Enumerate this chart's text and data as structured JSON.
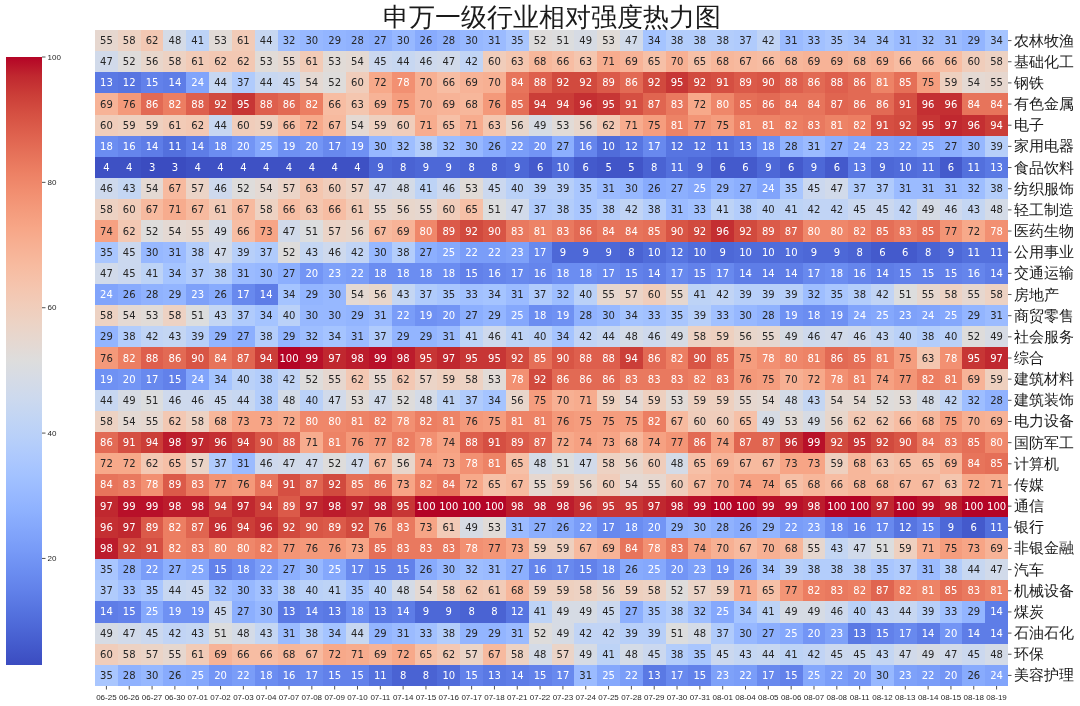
{
  "chart_data": {
    "type": "heatmap",
    "title": "申万一级行业相对强度热力图",
    "categories": [
      "06-25",
      "06-26",
      "06-27",
      "06-30",
      "07-01",
      "07-02",
      "07-03",
      "07-04",
      "07-07",
      "07-08",
      "07-09",
      "07-10",
      "07-11",
      "07-14",
      "07-15",
      "07-16",
      "07-17",
      "07-18",
      "07-21",
      "07-22",
      "07-23",
      "07-24",
      "07-25",
      "07-28",
      "07-29",
      "07-30",
      "07-31",
      "08-01",
      "08-04",
      "08-05",
      "08-06",
      "08-07",
      "08-08",
      "08-11",
      "08-12",
      "08-13",
      "08-14",
      "08-15",
      "08-18",
      "08-19"
    ],
    "y_categories": [
      "农林牧渔",
      "基础化工",
      "钢铁",
      "有色金属",
      "电子",
      "家用电器",
      "食品饮料",
      "纺织服饰",
      "轻工制造",
      "医药生物",
      "公用事业",
      "交通运输",
      "房地产",
      "商贸零售",
      "社会服务",
      "综合",
      "建筑材料",
      "建筑装饰",
      "电力设备",
      "国防军工",
      "计算机",
      "传媒",
      "通信",
      "银行",
      "非银金融",
      "汽车",
      "机械设备",
      "煤炭",
      "石油石化",
      "环保",
      "美容护理"
    ],
    "cells": [
      [
        55,
        58,
        62,
        48,
        41,
        53,
        61,
        44,
        32,
        30,
        29,
        28,
        27,
        30,
        26,
        28,
        30,
        31,
        35,
        52,
        51,
        49,
        53,
        47,
        34,
        38,
        38,
        38,
        37,
        42,
        31,
        33,
        35,
        34,
        34,
        31,
        32,
        31,
        29,
        34
      ],
      [
        47,
        52,
        56,
        58,
        61,
        62,
        62,
        53,
        55,
        61,
        53,
        54,
        45,
        44,
        46,
        47,
        42,
        60,
        63,
        68,
        66,
        63,
        71,
        69,
        65,
        70,
        65,
        68,
        67,
        66,
        68,
        69,
        69,
        68,
        69,
        66,
        66,
        66,
        60,
        58
      ],
      [
        13,
        12,
        15,
        14,
        24,
        44,
        37,
        44,
        45,
        54,
        52,
        60,
        72,
        78,
        70,
        66,
        69,
        70,
        84,
        88,
        92,
        92,
        89,
        86,
        92,
        95,
        92,
        91,
        89,
        90,
        88,
        86,
        88,
        86,
        81,
        85,
        75,
        59,
        54,
        55
      ],
      [
        69,
        76,
        86,
        82,
        88,
        92,
        95,
        88,
        86,
        82,
        66,
        63,
        69,
        75,
        70,
        69,
        68,
        76,
        85,
        94,
        94,
        96,
        95,
        91,
        87,
        83,
        72,
        80,
        85,
        86,
        84,
        84,
        87,
        86,
        86,
        91,
        96,
        96,
        84,
        84
      ],
      [
        60,
        59,
        59,
        61,
        62,
        44,
        60,
        59,
        66,
        72,
        67,
        54,
        59,
        60,
        71,
        65,
        71,
        63,
        56,
        49,
        53,
        56,
        62,
        71,
        75,
        81,
        77,
        75,
        81,
        81,
        82,
        83,
        81,
        82,
        91,
        92,
        95,
        97,
        96,
        94
      ],
      [
        18,
        16,
        14,
        11,
        14,
        18,
        20,
        25,
        19,
        20,
        17,
        19,
        30,
        32,
        38,
        32,
        30,
        26,
        22,
        20,
        27,
        16,
        10,
        12,
        17,
        12,
        12,
        11,
        13,
        18,
        28,
        31,
        27,
        24,
        23,
        22,
        25,
        27,
        30,
        39
      ],
      [
        4,
        4,
        3,
        3,
        4,
        4,
        4,
        4,
        4,
        4,
        4,
        4,
        9,
        8,
        9,
        9,
        8,
        8,
        9,
        6,
        10,
        6,
        5,
        5,
        8,
        11,
        9,
        6,
        6,
        9,
        6,
        9,
        6,
        13,
        9,
        10,
        11,
        6,
        11,
        13
      ],
      [
        46,
        43,
        54,
        67,
        57,
        46,
        52,
        54,
        57,
        63,
        60,
        57,
        47,
        48,
        41,
        46,
        53,
        45,
        40,
        39,
        39,
        35,
        31,
        30,
        26,
        27,
        25,
        29,
        27,
        24,
        35,
        45,
        47,
        37,
        37,
        31,
        31,
        31,
        32,
        38
      ],
      [
        58,
        60,
        67,
        71,
        67,
        61,
        67,
        58,
        66,
        63,
        66,
        61,
        55,
        56,
        55,
        60,
        65,
        51,
        47,
        37,
        38,
        35,
        38,
        42,
        38,
        31,
        33,
        41,
        38,
        40,
        41,
        42,
        42,
        45,
        45,
        42,
        49,
        46,
        43,
        48
      ],
      [
        74,
        62,
        52,
        54,
        55,
        49,
        66,
        73,
        47,
        51,
        57,
        56,
        67,
        69,
        80,
        89,
        92,
        90,
        83,
        81,
        83,
        86,
        84,
        84,
        85,
        90,
        92,
        96,
        92,
        89,
        87,
        80,
        80,
        82,
        85,
        83,
        85,
        77,
        72,
        78
      ],
      [
        35,
        45,
        30,
        31,
        38,
        47,
        39,
        37,
        52,
        43,
        46,
        42,
        30,
        38,
        27,
        25,
        22,
        22,
        23,
        17,
        9,
        9,
        9,
        8,
        10,
        12,
        10,
        9,
        10,
        10,
        10,
        9,
        9,
        8,
        6,
        6,
        8,
        9,
        11,
        11
      ],
      [
        47,
        45,
        41,
        34,
        37,
        38,
        31,
        30,
        27,
        20,
        23,
        22,
        18,
        18,
        18,
        18,
        15,
        16,
        17,
        16,
        18,
        18,
        17,
        15,
        14,
        17,
        15,
        17,
        14,
        14,
        14,
        17,
        18,
        16,
        14,
        15,
        15,
        15,
        16,
        14
      ],
      [
        24,
        26,
        28,
        29,
        23,
        26,
        17,
        14,
        34,
        29,
        30,
        54,
        56,
        43,
        37,
        35,
        33,
        34,
        31,
        37,
        32,
        40,
        55,
        57,
        60,
        55,
        41,
        42,
        39,
        39,
        39,
        32,
        35,
        38,
        42,
        51,
        55,
        58,
        55,
        58
      ],
      [
        58,
        54,
        53,
        58,
        51,
        43,
        37,
        34,
        40,
        30,
        30,
        29,
        31,
        22,
        19,
        20,
        27,
        29,
        25,
        18,
        19,
        28,
        30,
        34,
        33,
        35,
        39,
        33,
        30,
        28,
        19,
        18,
        19,
        24,
        25,
        23,
        24,
        25,
        29,
        31
      ],
      [
        29,
        38,
        42,
        43,
        39,
        29,
        27,
        38,
        29,
        32,
        34,
        31,
        37,
        29,
        29,
        31,
        41,
        46,
        41,
        40,
        34,
        42,
        44,
        48,
        46,
        49,
        58,
        59,
        56,
        55,
        49,
        46,
        47,
        46,
        43,
        40,
        38,
        40,
        52,
        49
      ],
      [
        76,
        82,
        88,
        86,
        90,
        84,
        87,
        94,
        100,
        99,
        97,
        98,
        99,
        98,
        95,
        97,
        95,
        95,
        92,
        85,
        90,
        88,
        88,
        94,
        86,
        82,
        90,
        85,
        75,
        78,
        80,
        81,
        86,
        85,
        81,
        75,
        63,
        78,
        95,
        97
      ],
      [
        19,
        20,
        17,
        15,
        24,
        34,
        40,
        38,
        42,
        52,
        55,
        62,
        55,
        62,
        57,
        59,
        58,
        53,
        78,
        92,
        86,
        86,
        86,
        83,
        83,
        83,
        82,
        83,
        76,
        75,
        70,
        72,
        78,
        81,
        74,
        77,
        82,
        81,
        69,
        59
      ],
      [
        44,
        49,
        51,
        46,
        46,
        45,
        44,
        38,
        48,
        40,
        47,
        53,
        47,
        52,
        48,
        41,
        37,
        34,
        56,
        75,
        70,
        71,
        59,
        54,
        59,
        53,
        59,
        59,
        55,
        54,
        48,
        43,
        54,
        54,
        52,
        53,
        48,
        42,
        32,
        28
      ],
      [
        58,
        54,
        55,
        62,
        58,
        68,
        73,
        73,
        72,
        80,
        80,
        81,
        82,
        78,
        82,
        81,
        76,
        75,
        81,
        81,
        76,
        75,
        75,
        75,
        82,
        67,
        60,
        60,
        65,
        49,
        53,
        49,
        56,
        62,
        62,
        66,
        68,
        75,
        70,
        69
      ],
      [
        86,
        91,
        94,
        98,
        97,
        96,
        94,
        90,
        88,
        71,
        81,
        76,
        77,
        82,
        78,
        74,
        88,
        91,
        89,
        87,
        72,
        74,
        73,
        68,
        74,
        77,
        86,
        74,
        87,
        87,
        96,
        99,
        92,
        95,
        92,
        90,
        84,
        83,
        85,
        80
      ],
      [
        72,
        72,
        62,
        65,
        57,
        37,
        31,
        46,
        47,
        47,
        52,
        47,
        67,
        56,
        74,
        73,
        78,
        81,
        65,
        48,
        51,
        47,
        58,
        56,
        60,
        48,
        65,
        69,
        67,
        67,
        73,
        73,
        59,
        68,
        63,
        65,
        65,
        69,
        84,
        85
      ],
      [
        84,
        83,
        78,
        89,
        83,
        77,
        76,
        84,
        91,
        87,
        92,
        85,
        86,
        73,
        82,
        84,
        72,
        65,
        67,
        55,
        59,
        56,
        60,
        54,
        55,
        60,
        67,
        70,
        74,
        74,
        65,
        68,
        66,
        68,
        68,
        67,
        67,
        63,
        72,
        71
      ],
      [
        97,
        99,
        99,
        98,
        98,
        94,
        97,
        94,
        89,
        97,
        98,
        97,
        98,
        95,
        100,
        100,
        100,
        100,
        98,
        98,
        98,
        96,
        95,
        95,
        97,
        98,
        99,
        100,
        100,
        99,
        99,
        98,
        100,
        100,
        97,
        100,
        99,
        98,
        100,
        100
      ],
      [
        96,
        97,
        89,
        82,
        87,
        96,
        94,
        96,
        92,
        90,
        89,
        92,
        76,
        83,
        73,
        61,
        49,
        53,
        31,
        27,
        26,
        22,
        17,
        18,
        20,
        29,
        30,
        28,
        26,
        29,
        22,
        23,
        18,
        16,
        17,
        12,
        15,
        9,
        6,
        11
      ],
      [
        98,
        92,
        91,
        82,
        83,
        80,
        80,
        82,
        77,
        76,
        76,
        73,
        85,
        83,
        83,
        83,
        78,
        77,
        73,
        59,
        59,
        67,
        69,
        84,
        78,
        83,
        74,
        70,
        67,
        70,
        68,
        55,
        43,
        47,
        51,
        59,
        71,
        75,
        73,
        69
      ],
      [
        35,
        28,
        22,
        27,
        25,
        15,
        18,
        22,
        27,
        30,
        25,
        17,
        15,
        15,
        26,
        30,
        32,
        31,
        27,
        16,
        17,
        15,
        18,
        26,
        25,
        20,
        23,
        19,
        26,
        34,
        39,
        38,
        38,
        38,
        35,
        37,
        31,
        38,
        44,
        47
      ],
      [
        37,
        33,
        35,
        44,
        45,
        32,
        30,
        33,
        38,
        40,
        41,
        35,
        40,
        48,
        54,
        58,
        62,
        61,
        68,
        59,
        59,
        58,
        56,
        59,
        58,
        52,
        57,
        59,
        71,
        65,
        77,
        82,
        83,
        82,
        87,
        82,
        81,
        85,
        83,
        81
      ],
      [
        14,
        15,
        25,
        19,
        19,
        45,
        27,
        30,
        13,
        14,
        13,
        18,
        13,
        14,
        9,
        9,
        8,
        8,
        12,
        41,
        49,
        49,
        45,
        27,
        35,
        38,
        32,
        25,
        34,
        41,
        49,
        49,
        46,
        40,
        43,
        44,
        39,
        33,
        29,
        14
      ],
      [
        49,
        47,
        45,
        42,
        43,
        51,
        48,
        43,
        31,
        38,
        34,
        44,
        29,
        31,
        33,
        38,
        29,
        29,
        31,
        52,
        49,
        42,
        42,
        39,
        39,
        51,
        48,
        37,
        30,
        27,
        25,
        20,
        23,
        13,
        15,
        17,
        14,
        20,
        14,
        14
      ],
      [
        60,
        58,
        57,
        55,
        61,
        69,
        66,
        66,
        68,
        67,
        72,
        71,
        69,
        72,
        65,
        62,
        57,
        67,
        58,
        48,
        57,
        49,
        41,
        48,
        45,
        38,
        35,
        45,
        43,
        44,
        41,
        42,
        45,
        45,
        43,
        47,
        49,
        47,
        45,
        48
      ],
      [
        35,
        28,
        30,
        26,
        25,
        20,
        22,
        18,
        16,
        17,
        15,
        15,
        11,
        8,
        8,
        10,
        15,
        13,
        14,
        15,
        17,
        31,
        25,
        22,
        13,
        17,
        15,
        23,
        22,
        17,
        15,
        25,
        22,
        20,
        30,
        23,
        22,
        20,
        26,
        24
      ]
    ],
    "clim": [
      3,
      100
    ],
    "cticks": [
      20,
      40,
      60,
      80,
      100
    ],
    "data_labels": true
  }
}
